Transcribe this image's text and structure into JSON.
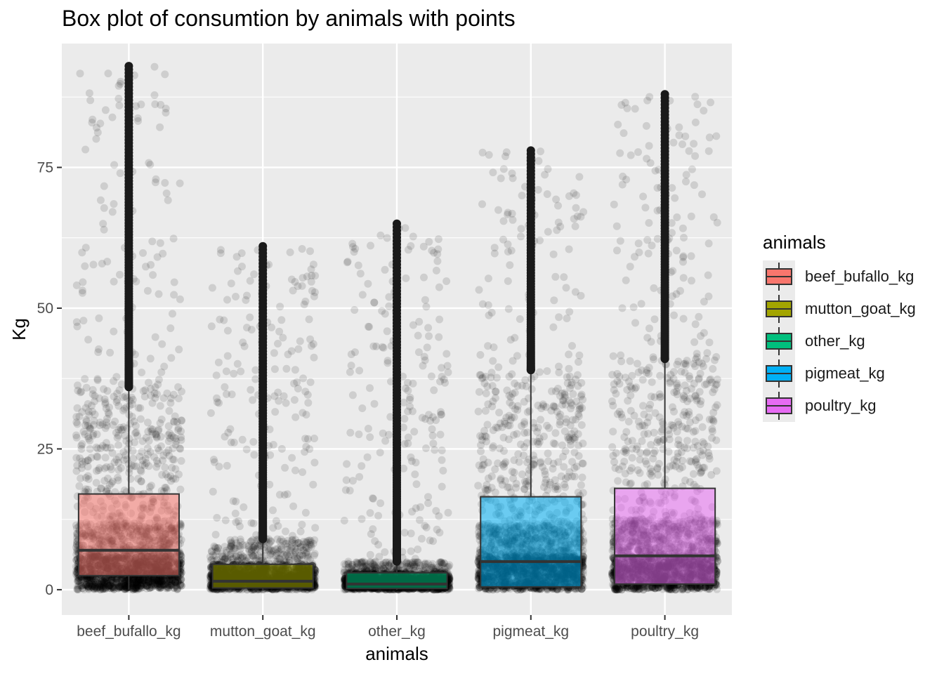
{
  "chart_data": {
    "type": "box",
    "title": "Box plot of consumtion by animals with points",
    "xlabel": "animals",
    "ylabel": "Kg",
    "ylim": [
      -4.5,
      97
    ],
    "yticks": [
      0,
      25,
      50,
      75
    ],
    "categories": [
      "beef_bufallo_kg",
      "mutton_goat_kg",
      "other_kg",
      "pigmeat_kg",
      "poultry_kg"
    ],
    "legend": {
      "title": "animals",
      "position": "right",
      "items": [
        {
          "label": "beef_bufallo_kg",
          "color": "#F8766D"
        },
        {
          "label": "mutton_goat_kg",
          "color": "#A3A500"
        },
        {
          "label": "other_kg",
          "color": "#00BF7D"
        },
        {
          "label": "pigmeat_kg",
          "color": "#00B0F6"
        },
        {
          "label": "poultry_kg",
          "color": "#E76BF3"
        }
      ]
    },
    "boxes": [
      {
        "category": "beef_bufallo_kg",
        "min": 0,
        "q1": 2.5,
        "median": 7,
        "q3": 17,
        "upper_whisker": 36,
        "outlier_max": 93,
        "color": "#F8766D"
      },
      {
        "category": "mutton_goat_kg",
        "min": 0,
        "q1": 0.3,
        "median": 1.5,
        "q3": 4.5,
        "upper_whisker": 9,
        "outlier_max": 61,
        "color": "#A3A500"
      },
      {
        "category": "other_kg",
        "min": 0,
        "q1": 0.2,
        "median": 1,
        "q3": 3,
        "upper_whisker": 5,
        "outlier_max": 65,
        "color": "#00BF7D"
      },
      {
        "category": "pigmeat_kg",
        "min": 0,
        "q1": 0.5,
        "median": 5,
        "q3": 16.5,
        "upper_whisker": 39,
        "outlier_max": 78,
        "color": "#00B0F6"
      },
      {
        "category": "poultry_kg",
        "min": 0,
        "q1": 1,
        "median": 6,
        "q3": 18,
        "upper_whisker": 41,
        "outlier_max": 88,
        "color": "#E76BF3"
      }
    ],
    "grid": true,
    "background": "#ebebeb",
    "points": "jittered, semi-transparent black, concentrated near 0"
  }
}
